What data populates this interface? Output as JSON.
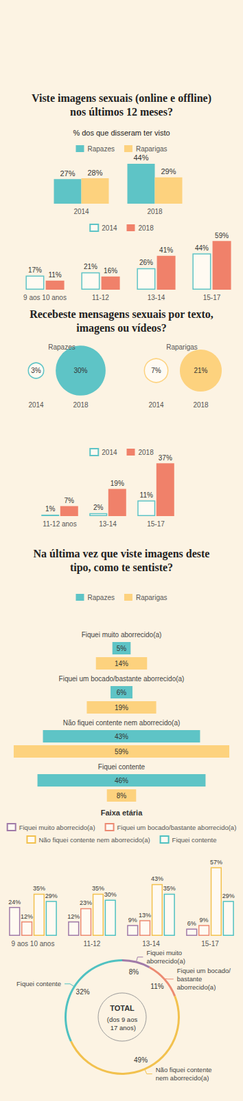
{
  "chart_data": [
    {
      "type": "bar",
      "title": "Viste imagens sexuais (online e offline) nos últimos 12 meses?",
      "subtitle": "% dos que disseram ter visto",
      "categories": [
        "2014",
        "2018"
      ],
      "series": [
        {
          "name": "Rapazes",
          "color": "#5ec4c6",
          "marker": "filled",
          "values": [
            27,
            44
          ],
          "value_labels": [
            "27%",
            "44%"
          ]
        },
        {
          "name": "Raparigas",
          "color": "#fdd27e",
          "marker": "filled",
          "values": [
            28,
            29
          ],
          "value_labels": [
            "28%",
            "29%"
          ]
        }
      ],
      "ylim": [
        0,
        50
      ],
      "grid": false,
      "tick_labels": "x",
      "data_labels": true,
      "legend": "top"
    },
    {
      "type": "bar",
      "categories": [
        "9 aos 10 anos",
        "11-12",
        "13-14",
        "15-17"
      ],
      "series": [
        {
          "name": "2014",
          "color": "#5ec4c6",
          "marker": "hollow",
          "values": [
            17,
            21,
            26,
            44
          ],
          "value_labels": [
            "17%",
            "21%",
            "26%",
            "44%"
          ]
        },
        {
          "name": "2018",
          "color": "#f0816a",
          "marker": "filled",
          "values": [
            11,
            16,
            41,
            59
          ],
          "value_labels": [
            "11%",
            "16%",
            "41%",
            "59%"
          ]
        }
      ],
      "ylim": [
        0,
        60
      ],
      "grid": false,
      "tick_labels": "x",
      "data_labels": true,
      "legend": "top"
    },
    {
      "type": "scatter",
      "title": "Recebeste mensagens sexuais por texto, imagens ou vídeos?",
      "categories": [
        "2014",
        "2018"
      ],
      "series": [
        {
          "name": "Rapazes",
          "color": "#5ec4c6",
          "values": [
            3,
            30
          ],
          "value_labels": [
            "3%",
            "30%"
          ]
        },
        {
          "name": "Raparigas",
          "color": "#fdd27e",
          "values": [
            7,
            21
          ],
          "value_labels": [
            "7%",
            "21%"
          ]
        }
      ],
      "data_labels": true
    },
    {
      "type": "bar",
      "categories": [
        "11-12 anos",
        "13-14",
        "15-17"
      ],
      "series": [
        {
          "name": "2014",
          "color": "#5ec4c6",
          "marker": "hollow",
          "values": [
            1,
            2,
            11
          ],
          "value_labels": [
            "1%",
            "2%",
            "11%"
          ]
        },
        {
          "name": "2018",
          "color": "#f0816a",
          "marker": "filled",
          "values": [
            7,
            19,
            37
          ],
          "value_labels": [
            "7%",
            "19%",
            "37%"
          ]
        }
      ],
      "ylim": [
        0,
        40
      ],
      "grid": false,
      "tick_labels": "x",
      "data_labels": true,
      "legend": "top"
    },
    {
      "type": "bar",
      "orientation": "horizontal",
      "title": "Na última vez que viste imagens deste tipo, como te sentiste?",
      "categories": [
        "Fiquei muito aborrecido(a)",
        "Fiquei um bocado/bastante aborrecido(a)",
        "Não fiquei contente nem aborrecido(a)",
        "Fiquei contente"
      ],
      "series": [
        {
          "name": "Rapazes",
          "color": "#5ec4c6",
          "values": [
            5,
            6,
            43,
            46
          ],
          "value_labels": [
            "5%",
            "6%",
            "43%",
            "46%"
          ]
        },
        {
          "name": "Raparigas",
          "color": "#fdd27e",
          "values": [
            14,
            19,
            59,
            8
          ],
          "value_labels": [
            "14%",
            "19%",
            "59%",
            "8%"
          ]
        }
      ],
      "xlim": [
        0,
        65
      ],
      "grid": false,
      "tick_labels": false,
      "data_labels": true,
      "legend": "top"
    },
    {
      "type": "bar",
      "title": "Faixa etária",
      "categories": [
        "9 aos 10 anos",
        "11-12",
        "13-14",
        "15-17"
      ],
      "series": [
        {
          "name": "Fiquei muito aborrecido(a)",
          "color": "#a07aa8",
          "marker": "hollow",
          "values": [
            24,
            12,
            9,
            6
          ],
          "value_labels": [
            "24%",
            "12%",
            "9%",
            "6%"
          ]
        },
        {
          "name": "Fiquei um bocado/bastante aborrecido(a)",
          "color": "#ec8a72",
          "marker": "hollow",
          "values": [
            12,
            23,
            13,
            9
          ],
          "value_labels": [
            "12%",
            "23%",
            "13%",
            "9%"
          ]
        },
        {
          "name": "Não fiquei contente nem aborrecido(a)",
          "color": "#f2c14e",
          "marker": "hollow",
          "values": [
            35,
            35,
            43,
            57
          ],
          "value_labels": [
            "35%",
            "35%",
            "43%",
            "57%"
          ]
        },
        {
          "name": "Fiquei contente",
          "color": "#4fc1c1",
          "marker": "hollow",
          "values": [
            29,
            30,
            35,
            29
          ],
          "value_labels": [
            "29%",
            "30%",
            "35%",
            "29%"
          ]
        }
      ],
      "ylim": [
        0,
        60
      ],
      "grid": false,
      "tick_labels": "x",
      "data_labels": true,
      "legend": "top"
    },
    {
      "type": "pie",
      "categories": [
        "Fiquei muito aborrecido(a)",
        "Fiquei um bocado/ bastante aborrecido(a)",
        "Não fiquei contente nem aborrecido(a)",
        "Fiquei contente"
      ],
      "values": [
        8,
        11,
        49,
        32
      ],
      "value_labels": [
        "8%",
        "11%",
        "49%",
        "32%"
      ],
      "colors": [
        "#a07aa8",
        "#ec8a72",
        "#f2c14e",
        "#4fc1c1"
      ],
      "annotations": [
        "TOTAL",
        "(dos 9 aos 17 anos)"
      ],
      "data_labels": true
    }
  ]
}
